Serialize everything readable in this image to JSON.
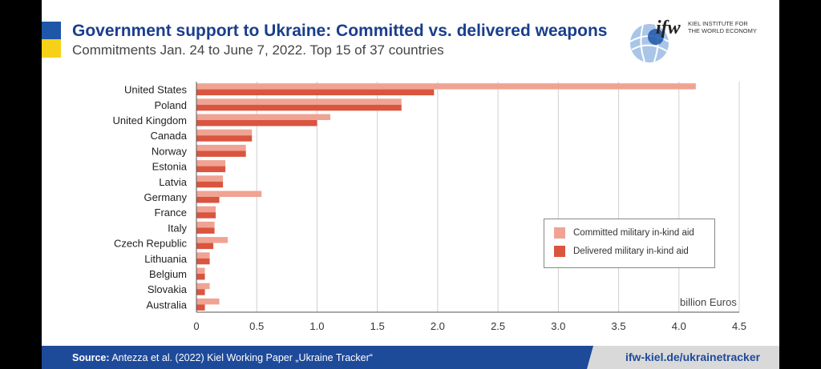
{
  "header": {
    "title": "Government support to Ukraine: Committed vs. delivered weapons",
    "subtitle": "Commitments Jan. 24 to June 7, 2022. Top 15 of 37 countries"
  },
  "logo": {
    "mark": "ifw",
    "line1": "KIEL INSTITUTE FOR",
    "line2": "THE WORLD ECONOMY"
  },
  "footer": {
    "source_label": "Source:",
    "source_text": " Antezza et al. (2022) Kiel Working Paper „Ukraine Tracker“",
    "url": "ifw-kiel.de/ukrainetracker"
  },
  "colors": {
    "committed": "#f0a392",
    "delivered": "#d95540",
    "grid": "#d0d0d0",
    "title": "#1a3e8c"
  },
  "chart_data": {
    "type": "bar",
    "orientation": "horizontal",
    "title": "Government support to Ukraine: Committed vs. delivered weapons",
    "subtitle": "Commitments Jan. 24 to June 7, 2022. Top 15 of 37 countries",
    "xlabel": "billion Euros",
    "ylabel": "",
    "xlim": [
      0,
      4.5
    ],
    "xticks": [
      0,
      0.5,
      1.0,
      1.5,
      2.0,
      2.5,
      3.0,
      3.5,
      4.0,
      4.5
    ],
    "xtick_labels": [
      "0",
      "0.5",
      "1.0",
      "1.5",
      "2.0",
      "2.5",
      "3.0",
      "3.5",
      "4.0",
      "4.5"
    ],
    "grid": true,
    "legend_position": "right",
    "categories": [
      "United States",
      "Poland",
      "United Kingdom",
      "Canada",
      "Norway",
      "Estonia",
      "Latvia",
      "Germany",
      "France",
      "Italy",
      "Czech Republic",
      "Lithuania",
      "Belgium",
      "Slovakia",
      "Australia"
    ],
    "series": [
      {
        "name": "Committed military in-kind aid",
        "values": [
          4.14,
          1.7,
          1.11,
          0.46,
          0.41,
          0.24,
          0.22,
          0.54,
          0.16,
          0.15,
          0.26,
          0.11,
          0.07,
          0.11,
          0.19
        ]
      },
      {
        "name": "Delivered military in-kind aid",
        "values": [
          1.97,
          1.7,
          1.0,
          0.46,
          0.41,
          0.24,
          0.22,
          0.19,
          0.16,
          0.15,
          0.14,
          0.11,
          0.07,
          0.07,
          0.07
        ]
      }
    ]
  }
}
